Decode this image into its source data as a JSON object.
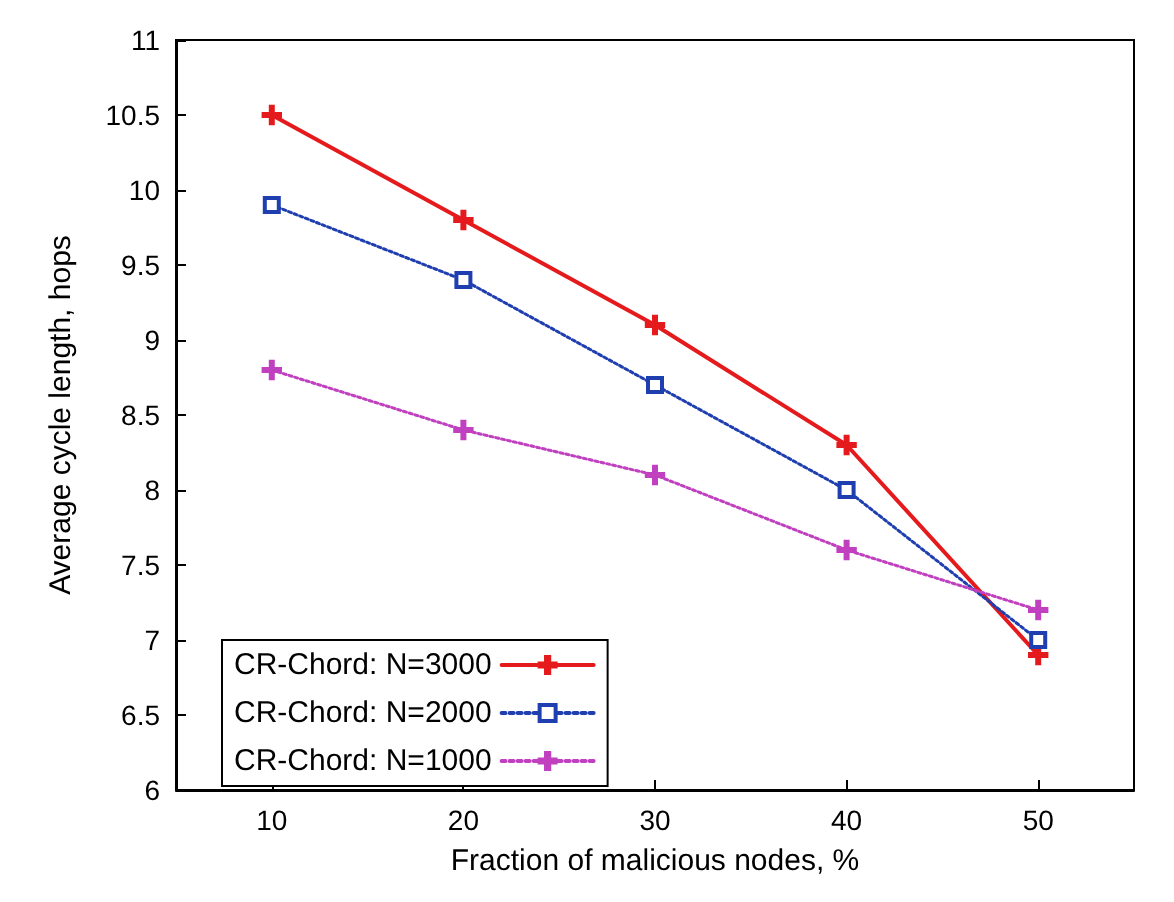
{
  "chart_data": {
    "type": "line",
    "xlabel": "Fraction of malicious nodes, %",
    "ylabel": "Average cycle length, hops",
    "x": [
      10,
      20,
      30,
      40,
      50
    ],
    "xlim": [
      5,
      55
    ],
    "xticks": [
      10,
      20,
      30,
      40,
      50
    ],
    "ylim": [
      6,
      11
    ],
    "yticks": [
      6,
      6.5,
      7,
      7.5,
      8,
      8.5,
      9,
      9.5,
      10,
      10.5,
      11
    ],
    "grid": false,
    "legend": "bottom left",
    "series": [
      {
        "name": "CR-Chord: N=3000",
        "color": "#e41a1c",
        "values": [
          10.5,
          9.8,
          9.1,
          8.3,
          6.9
        ],
        "marker": "cross",
        "line_style": "solid"
      },
      {
        "name": "CR-Chord: N=2000",
        "color": "#1f3fb0",
        "values": [
          9.9,
          9.4,
          8.7,
          8.0,
          7.0
        ],
        "marker": "square",
        "line_style": "dotted"
      },
      {
        "name": "CR-Chord: N=1000",
        "color": "#c040c0",
        "values": [
          8.8,
          8.4,
          8.1,
          7.6,
          7.2
        ],
        "marker": "cross",
        "line_style": "dotted"
      }
    ]
  }
}
